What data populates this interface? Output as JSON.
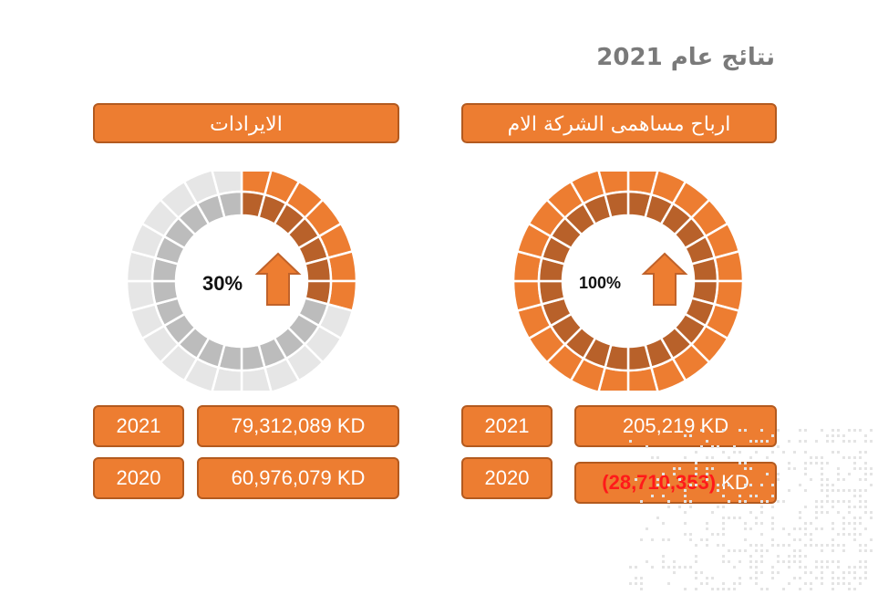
{
  "title": "نتائج عام 2021",
  "left_panel": {
    "header": "الايرادات",
    "percent": "30%",
    "percent_value": 30,
    "rows": [
      {
        "year": "2021",
        "value": "79,312,089 KD"
      },
      {
        "year": "2020",
        "value": "60,976,079 KD"
      }
    ]
  },
  "right_panel": {
    "header": "ارباح مساهمى الشركة الام",
    "percent": "100%",
    "percent_value": 100,
    "rows": [
      {
        "year": "2021",
        "value": "205,219 KD"
      },
      {
        "year": "2020",
        "value_negative": "(28,710,353)",
        "value_unit": "KD"
      }
    ]
  },
  "colors": {
    "accent": "#ed7d31",
    "accent_dark": "#b8612a",
    "inactive_outer": "#e6e6e6",
    "inactive_inner": "#bcbcbc",
    "title_gray": "#7a7a7a",
    "negative": "#ff1a1a"
  },
  "icons": {
    "arrow": "up-arrow-icon"
  }
}
